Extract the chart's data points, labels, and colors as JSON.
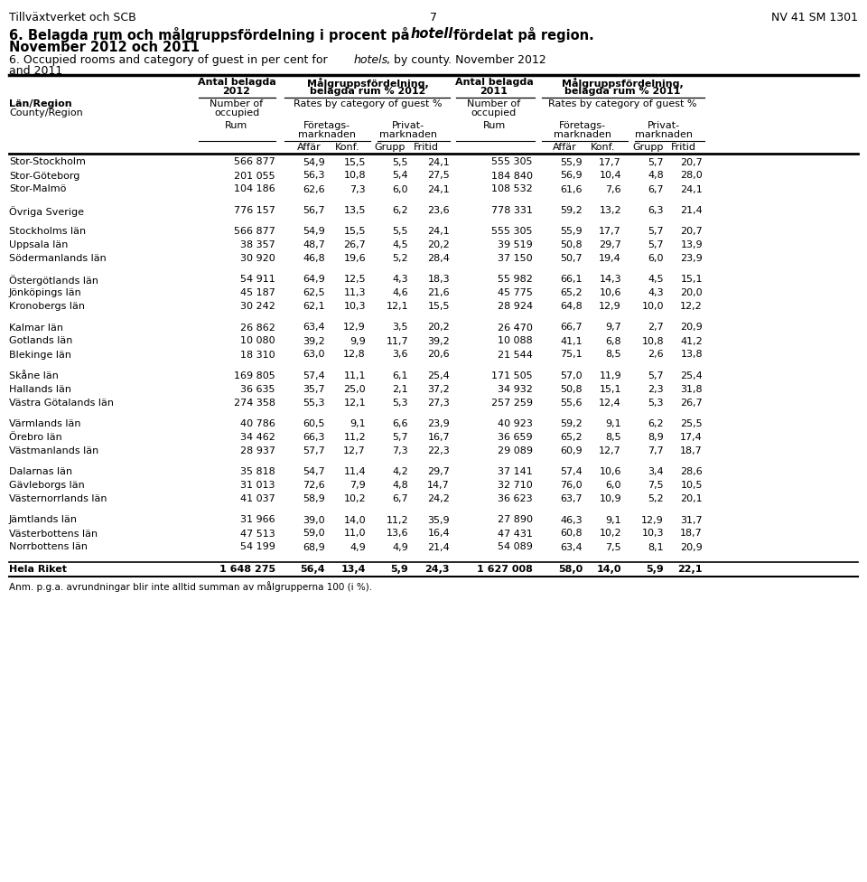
{
  "header_left": "Tillväxtverket och SCB",
  "header_center": "7",
  "header_right": "NV 41 SM 1301",
  "footnote": "Anm. p.g.a. avrundningar blir inte alltid summan av målgrupperna 100 (i %).",
  "rows": [
    {
      "name": "Stor-Stockholm",
      "rum12": "566 877",
      "affar12": "54,9",
      "konf12": "15,5",
      "grupp12": "5,5",
      "fritid12": "24,1",
      "rum11": "555 305",
      "affar11": "55,9",
      "konf11": "17,7",
      "grupp11": "5,7",
      "fritid11": "20,7",
      "gap_before": false,
      "gap_after": false,
      "bold": false
    },
    {
      "name": "Stor-Göteborg",
      "rum12": "201 055",
      "affar12": "56,3",
      "konf12": "10,8",
      "grupp12": "5,4",
      "fritid12": "27,5",
      "rum11": "184 840",
      "affar11": "56,9",
      "konf11": "10,4",
      "grupp11": "4,8",
      "fritid11": "28,0",
      "gap_before": false,
      "gap_after": false,
      "bold": false
    },
    {
      "name": "Stor-Malmö",
      "rum12": "104 186",
      "affar12": "62,6",
      "konf12": "7,3",
      "grupp12": "6,0",
      "fritid12": "24,1",
      "rum11": "108 532",
      "affar11": "61,6",
      "konf11": "7,6",
      "grupp11": "6,7",
      "fritid11": "24,1",
      "gap_before": false,
      "gap_after": true,
      "bold": false
    },
    {
      "name": "Övriga Sverige",
      "rum12": "776 157",
      "affar12": "56,7",
      "konf12": "13,5",
      "grupp12": "6,2",
      "fritid12": "23,6",
      "rum11": "778 331",
      "affar11": "59,2",
      "konf11": "13,2",
      "grupp11": "6,3",
      "fritid11": "21,4",
      "gap_before": false,
      "gap_after": true,
      "bold": false
    },
    {
      "name": "Stockholms län",
      "rum12": "566 877",
      "affar12": "54,9",
      "konf12": "15,5",
      "grupp12": "5,5",
      "fritid12": "24,1",
      "rum11": "555 305",
      "affar11": "55,9",
      "konf11": "17,7",
      "grupp11": "5,7",
      "fritid11": "20,7",
      "gap_before": false,
      "gap_after": false,
      "bold": false
    },
    {
      "name": "Uppsala län",
      "rum12": "38 357",
      "affar12": "48,7",
      "konf12": "26,7",
      "grupp12": "4,5",
      "fritid12": "20,2",
      "rum11": "39 519",
      "affar11": "50,8",
      "konf11": "29,7",
      "grupp11": "5,7",
      "fritid11": "13,9",
      "gap_before": false,
      "gap_after": false,
      "bold": false
    },
    {
      "name": "Södermanlands län",
      "rum12": "30 920",
      "affar12": "46,8",
      "konf12": "19,6",
      "grupp12": "5,2",
      "fritid12": "28,4",
      "rum11": "37 150",
      "affar11": "50,7",
      "konf11": "19,4",
      "grupp11": "6,0",
      "fritid11": "23,9",
      "gap_before": false,
      "gap_after": true,
      "bold": false
    },
    {
      "name": "Östergötlands län",
      "rum12": "54 911",
      "affar12": "64,9",
      "konf12": "12,5",
      "grupp12": "4,3",
      "fritid12": "18,3",
      "rum11": "55 982",
      "affar11": "66,1",
      "konf11": "14,3",
      "grupp11": "4,5",
      "fritid11": "15,1",
      "gap_before": false,
      "gap_after": false,
      "bold": false
    },
    {
      "name": "Jönköpings län",
      "rum12": "45 187",
      "affar12": "62,5",
      "konf12": "11,3",
      "grupp12": "4,6",
      "fritid12": "21,6",
      "rum11": "45 775",
      "affar11": "65,2",
      "konf11": "10,6",
      "grupp11": "4,3",
      "fritid11": "20,0",
      "gap_before": false,
      "gap_after": false,
      "bold": false
    },
    {
      "name": "Kronobergs län",
      "rum12": "30 242",
      "affar12": "62,1",
      "konf12": "10,3",
      "grupp12": "12,1",
      "fritid12": "15,5",
      "rum11": "28 924",
      "affar11": "64,8",
      "konf11": "12,9",
      "grupp11": "10,0",
      "fritid11": "12,2",
      "gap_before": false,
      "gap_after": true,
      "bold": false
    },
    {
      "name": "Kalmar län",
      "rum12": "26 862",
      "affar12": "63,4",
      "konf12": "12,9",
      "grupp12": "3,5",
      "fritid12": "20,2",
      "rum11": "26 470",
      "affar11": "66,7",
      "konf11": "9,7",
      "grupp11": "2,7",
      "fritid11": "20,9",
      "gap_before": false,
      "gap_after": false,
      "bold": false
    },
    {
      "name": "Gotlands län",
      "rum12": "10 080",
      "affar12": "39,2",
      "konf12": "9,9",
      "grupp12": "11,7",
      "fritid12": "39,2",
      "rum11": "10 088",
      "affar11": "41,1",
      "konf11": "6,8",
      "grupp11": "10,8",
      "fritid11": "41,2",
      "gap_before": false,
      "gap_after": false,
      "bold": false
    },
    {
      "name": "Blekinge län",
      "rum12": "18 310",
      "affar12": "63,0",
      "konf12": "12,8",
      "grupp12": "3,6",
      "fritid12": "20,6",
      "rum11": "21 544",
      "affar11": "75,1",
      "konf11": "8,5",
      "grupp11": "2,6",
      "fritid11": "13,8",
      "gap_before": false,
      "gap_after": true,
      "bold": false
    },
    {
      "name": "Skåne län",
      "rum12": "169 805",
      "affar12": "57,4",
      "konf12": "11,1",
      "grupp12": "6,1",
      "fritid12": "25,4",
      "rum11": "171 505",
      "affar11": "57,0",
      "konf11": "11,9",
      "grupp11": "5,7",
      "fritid11": "25,4",
      "gap_before": false,
      "gap_after": false,
      "bold": false
    },
    {
      "name": "Hallands län",
      "rum12": "36 635",
      "affar12": "35,7",
      "konf12": "25,0",
      "grupp12": "2,1",
      "fritid12": "37,2",
      "rum11": "34 932",
      "affar11": "50,8",
      "konf11": "15,1",
      "grupp11": "2,3",
      "fritid11": "31,8",
      "gap_before": false,
      "gap_after": false,
      "bold": false
    },
    {
      "name": "Västra Götalands län",
      "rum12": "274 358",
      "affar12": "55,3",
      "konf12": "12,1",
      "grupp12": "5,3",
      "fritid12": "27,3",
      "rum11": "257 259",
      "affar11": "55,6",
      "konf11": "12,4",
      "grupp11": "5,3",
      "fritid11": "26,7",
      "gap_before": false,
      "gap_after": true,
      "bold": false
    },
    {
      "name": "Värmlands län",
      "rum12": "40 786",
      "affar12": "60,5",
      "konf12": "9,1",
      "grupp12": "6,6",
      "fritid12": "23,9",
      "rum11": "40 923",
      "affar11": "59,2",
      "konf11": "9,1",
      "grupp11": "6,2",
      "fritid11": "25,5",
      "gap_before": false,
      "gap_after": false,
      "bold": false
    },
    {
      "name": "Örebro län",
      "rum12": "34 462",
      "affar12": "66,3",
      "konf12": "11,2",
      "grupp12": "5,7",
      "fritid12": "16,7",
      "rum11": "36 659",
      "affar11": "65,2",
      "konf11": "8,5",
      "grupp11": "8,9",
      "fritid11": "17,4",
      "gap_before": false,
      "gap_after": false,
      "bold": false
    },
    {
      "name": "Västmanlands län",
      "rum12": "28 937",
      "affar12": "57,7",
      "konf12": "12,7",
      "grupp12": "7,3",
      "fritid12": "22,3",
      "rum11": "29 089",
      "affar11": "60,9",
      "konf11": "12,7",
      "grupp11": "7,7",
      "fritid11": "18,7",
      "gap_before": false,
      "gap_after": true,
      "bold": false
    },
    {
      "name": "Dalarnas län",
      "rum12": "35 818",
      "affar12": "54,7",
      "konf12": "11,4",
      "grupp12": "4,2",
      "fritid12": "29,7",
      "rum11": "37 141",
      "affar11": "57,4",
      "konf11": "10,6",
      "grupp11": "3,4",
      "fritid11": "28,6",
      "gap_before": false,
      "gap_after": false,
      "bold": false
    },
    {
      "name": "Gävleborgs län",
      "rum12": "31 013",
      "affar12": "72,6",
      "konf12": "7,9",
      "grupp12": "4,8",
      "fritid12": "14,7",
      "rum11": "32 710",
      "affar11": "76,0",
      "konf11": "6,0",
      "grupp11": "7,5",
      "fritid11": "10,5",
      "gap_before": false,
      "gap_after": false,
      "bold": false
    },
    {
      "name": "Västernorrlands län",
      "rum12": "41 037",
      "affar12": "58,9",
      "konf12": "10,2",
      "grupp12": "6,7",
      "fritid12": "24,2",
      "rum11": "36 623",
      "affar11": "63,7",
      "konf11": "10,9",
      "grupp11": "5,2",
      "fritid11": "20,1",
      "gap_before": false,
      "gap_after": true,
      "bold": false
    },
    {
      "name": "Jämtlands län",
      "rum12": "31 966",
      "affar12": "39,0",
      "konf12": "14,0",
      "grupp12": "11,2",
      "fritid12": "35,9",
      "rum11": "27 890",
      "affar11": "46,3",
      "konf11": "9,1",
      "grupp11": "12,9",
      "fritid11": "31,7",
      "gap_before": false,
      "gap_after": false,
      "bold": false
    },
    {
      "name": "Västerbottens län",
      "rum12": "47 513",
      "affar12": "59,0",
      "konf12": "11,0",
      "grupp12": "13,6",
      "fritid12": "16,4",
      "rum11": "47 431",
      "affar11": "60,8",
      "konf11": "10,2",
      "grupp11": "10,3",
      "fritid11": "18,7",
      "gap_before": false,
      "gap_after": false,
      "bold": false
    },
    {
      "name": "Norrbottens län",
      "rum12": "54 199",
      "affar12": "68,9",
      "konf12": "4,9",
      "grupp12": "4,9",
      "fritid12": "21,4",
      "rum11": "54 089",
      "affar11": "63,4",
      "konf11": "7,5",
      "grupp11": "8,1",
      "fritid11": "20,9",
      "gap_before": false,
      "gap_after": true,
      "bold": false
    },
    {
      "name": "Hela Riket",
      "rum12": "1 648 275",
      "affar12": "56,4",
      "konf12": "13,4",
      "grupp12": "5,9",
      "fritid12": "24,3",
      "rum11": "1 627 008",
      "affar11": "58,0",
      "konf11": "14,0",
      "grupp11": "5,9",
      "fritid11": "22,1",
      "gap_before": false,
      "gap_after": false,
      "bold": true
    }
  ]
}
